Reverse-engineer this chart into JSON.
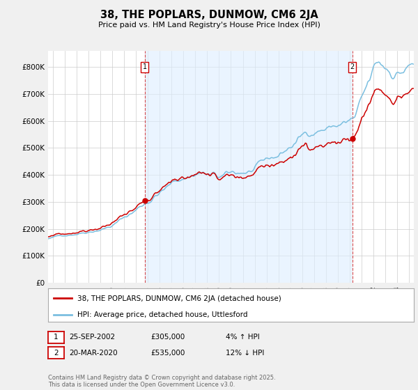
{
  "title": "38, THE POPLARS, DUNMOW, CM6 2JA",
  "subtitle": "Price paid vs. HM Land Registry's House Price Index (HPI)",
  "legend_line1": "38, THE POPLARS, DUNMOW, CM6 2JA (detached house)",
  "legend_line2": "HPI: Average price, detached house, Uttlesford",
  "annotation1_label": "1",
  "annotation1_date": "25-SEP-2002",
  "annotation1_price": "£305,000",
  "annotation1_hpi": "4% ↑ HPI",
  "annotation1_year": 2002.73,
  "annotation1_value": 305000,
  "annotation2_label": "2",
  "annotation2_date": "20-MAR-2020",
  "annotation2_price": "£535,000",
  "annotation2_hpi": "12% ↓ HPI",
  "annotation2_year": 2020.22,
  "annotation2_value": 535000,
  "yticks": [
    0,
    100000,
    200000,
    300000,
    400000,
    500000,
    600000,
    700000,
    800000
  ],
  "ylim": [
    0,
    860000
  ],
  "xlim_start": 1994.6,
  "xlim_end": 2025.4,
  "background_color": "#f0f0f0",
  "plot_bg_color": "#ffffff",
  "hpi_color": "#7bbfe0",
  "price_color": "#cc0000",
  "shade_color": "#ddeeff",
  "footer": "Contains HM Land Registry data © Crown copyright and database right 2025.\nThis data is licensed under the Open Government Licence v3.0."
}
